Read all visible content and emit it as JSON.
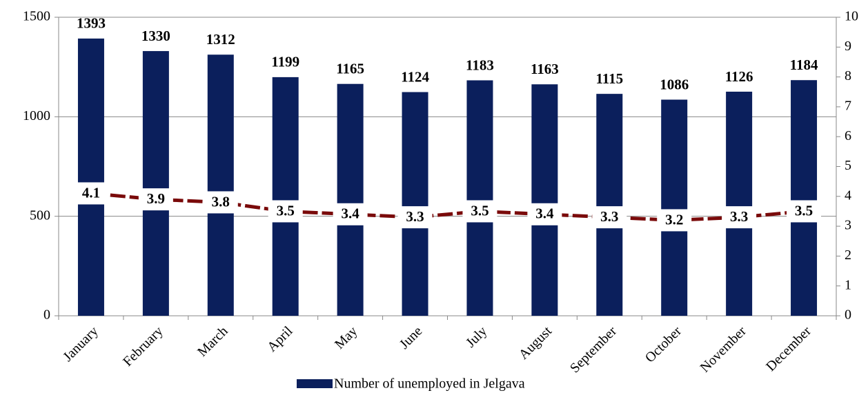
{
  "chart_data": {
    "type": "bar_line",
    "categories": [
      "January",
      "February",
      "March",
      "April",
      "May",
      "June",
      "July",
      "August",
      "September",
      "October",
      "November",
      "December"
    ],
    "series": [
      {
        "name": "Number of unemployed in Jelgava",
        "color": "#0b1f5c",
        "values": [
          1393,
          1330,
          1312,
          1199,
          1165,
          1124,
          1183,
          1163,
          1115,
          1086,
          1126,
          1184
        ]
      },
      {
        "color": "#7a0a0a",
        "axis": "y2",
        "values": [
          4.1,
          3.9,
          3.8,
          3.5,
          3.4,
          3.3,
          3.5,
          3.4,
          3.3,
          3.2,
          3.3,
          3.5
        ]
      }
    ],
    "ylim": [
      0,
      1500
    ],
    "yticks": [
      0,
      500,
      1000,
      1500
    ],
    "y2lim": [
      0,
      10
    ],
    "y2ticks": [
      0,
      1,
      2,
      3,
      4,
      5,
      6,
      7,
      8,
      9,
      10
    ],
    "grid": true,
    "legend": "bottom"
  }
}
